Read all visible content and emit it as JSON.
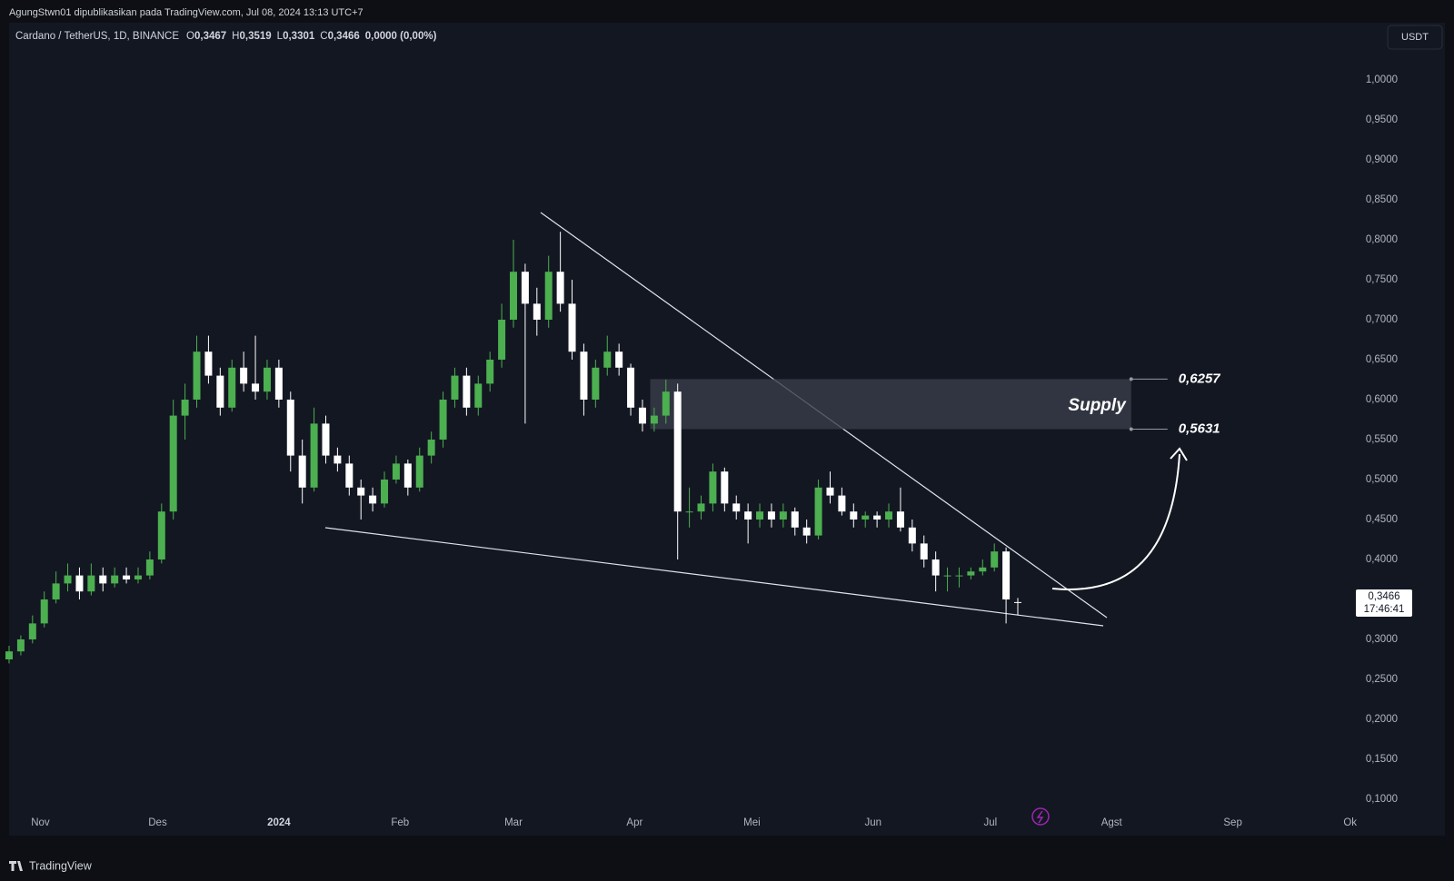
{
  "chart_data": {
    "type": "candlestick",
    "publisher": "AgungStwn01 dipublikasikan pada TradingView.com, Jul 08, 2024 13:13 UTC+7",
    "symbol": "Cardano / TetherUS, 1D, BINANCE",
    "ohlc_legend": [
      {
        "key": "O",
        "value": "0,3467"
      },
      {
        "key": "H",
        "value": "0,3519"
      },
      {
        "key": "L",
        "value": "0,3301"
      },
      {
        "key": "C",
        "value": "0,3466"
      }
    ],
    "change": "0,0000 (0,00%)",
    "currency": "USDT",
    "last_price": {
      "value": 0.3466,
      "label": "0,3466",
      "countdown": "17:46:41"
    },
    "brand": "TradingView",
    "up_color": "#4caf50",
    "down_color": "#ffffff",
    "grid": false,
    "xlim": [
      0,
      344
    ],
    "xticks": [
      {
        "value": 8,
        "label": "Nov"
      },
      {
        "value": 38,
        "label": "Des"
      },
      {
        "value": 69,
        "label": "2024"
      },
      {
        "value": 100,
        "label": "Feb"
      },
      {
        "value": 129,
        "label": "Mar"
      },
      {
        "value": 160,
        "label": "Apr"
      },
      {
        "value": 190,
        "label": "Mei"
      },
      {
        "value": 221,
        "label": "Jun"
      },
      {
        "value": 251,
        "label": "Jul"
      },
      {
        "value": 282,
        "label": "Agst"
      },
      {
        "value": 313,
        "label": "Sep"
      },
      {
        "value": 343,
        "label": "Ok"
      }
    ],
    "ylim": [
      0.0568,
      1.0716
    ],
    "yticks": [
      {
        "value": 0.1,
        "label": "0,1000"
      },
      {
        "value": 0.15,
        "label": "0,1500"
      },
      {
        "value": 0.2,
        "label": "0,2000"
      },
      {
        "value": 0.25,
        "label": "0,2500"
      },
      {
        "value": 0.3,
        "label": "0,3000"
      },
      {
        "value": 0.35,
        "label": "0,3500"
      },
      {
        "value": 0.4,
        "label": "0,4000"
      },
      {
        "value": 0.45,
        "label": "0,4500"
      },
      {
        "value": 0.5,
        "label": "0,5000"
      },
      {
        "value": 0.55,
        "label": "0,5500"
      },
      {
        "value": 0.6,
        "label": "0,6000"
      },
      {
        "value": 0.65,
        "label": "0,6500"
      },
      {
        "value": 0.7,
        "label": "0,7000"
      },
      {
        "value": 0.75,
        "label": "0,7500"
      },
      {
        "value": 0.8,
        "label": "0,8000"
      },
      {
        "value": 0.85,
        "label": "0,8500"
      },
      {
        "value": 0.9,
        "label": "0,9000"
      },
      {
        "value": 0.95,
        "label": "0,9500"
      },
      {
        "value": 1,
        "label": "1,0000"
      }
    ],
    "supply_zone": {
      "label": "Supply",
      "top": {
        "value": 0.6257,
        "label": "0,6257"
      },
      "bottom": {
        "value": 0.5631,
        "label": "0,5631"
      }
    },
    "candles": [
      [
        0,
        0.275,
        0.292,
        0.27,
        0.285
      ],
      [
        3,
        0.285,
        0.305,
        0.28,
        0.3
      ],
      [
        6,
        0.3,
        0.33,
        0.295,
        0.32
      ],
      [
        9,
        0.32,
        0.36,
        0.315,
        0.35
      ],
      [
        12,
        0.35,
        0.385,
        0.345,
        0.37
      ],
      [
        15,
        0.37,
        0.395,
        0.36,
        0.38
      ],
      [
        18,
        0.38,
        0.39,
        0.35,
        0.36
      ],
      [
        21,
        0.36,
        0.395,
        0.355,
        0.38
      ],
      [
        24,
        0.38,
        0.39,
        0.36,
        0.37
      ],
      [
        27,
        0.37,
        0.39,
        0.365,
        0.38
      ],
      [
        30,
        0.38,
        0.39,
        0.37,
        0.375
      ],
      [
        33,
        0.375,
        0.39,
        0.37,
        0.38
      ],
      [
        36,
        0.38,
        0.41,
        0.375,
        0.4
      ],
      [
        39,
        0.4,
        0.47,
        0.395,
        0.46
      ],
      [
        42,
        0.46,
        0.6,
        0.45,
        0.58
      ],
      [
        45,
        0.58,
        0.62,
        0.55,
        0.6
      ],
      [
        48,
        0.6,
        0.68,
        0.59,
        0.66
      ],
      [
        51,
        0.66,
        0.68,
        0.62,
        0.63
      ],
      [
        54,
        0.63,
        0.64,
        0.58,
        0.59
      ],
      [
        57,
        0.59,
        0.65,
        0.585,
        0.64
      ],
      [
        60,
        0.64,
        0.66,
        0.61,
        0.62
      ],
      [
        63,
        0.62,
        0.68,
        0.6,
        0.61
      ],
      [
        66,
        0.61,
        0.65,
        0.6,
        0.64
      ],
      [
        69,
        0.64,
        0.65,
        0.59,
        0.6
      ],
      [
        72,
        0.6,
        0.61,
        0.51,
        0.53
      ],
      [
        75,
        0.53,
        0.55,
        0.47,
        0.49
      ],
      [
        78,
        0.49,
        0.59,
        0.485,
        0.57
      ],
      [
        81,
        0.57,
        0.58,
        0.52,
        0.53
      ],
      [
        84,
        0.53,
        0.54,
        0.51,
        0.52
      ],
      [
        87,
        0.52,
        0.53,
        0.48,
        0.49
      ],
      [
        90,
        0.49,
        0.5,
        0.45,
        0.48
      ],
      [
        93,
        0.48,
        0.49,
        0.46,
        0.47
      ],
      [
        96,
        0.47,
        0.51,
        0.465,
        0.5
      ],
      [
        99,
        0.5,
        0.53,
        0.495,
        0.52
      ],
      [
        102,
        0.52,
        0.525,
        0.48,
        0.49
      ],
      [
        105,
        0.49,
        0.54,
        0.485,
        0.53
      ],
      [
        108,
        0.53,
        0.56,
        0.52,
        0.55
      ],
      [
        111,
        0.55,
        0.61,
        0.54,
        0.6
      ],
      [
        114,
        0.6,
        0.64,
        0.59,
        0.63
      ],
      [
        117,
        0.63,
        0.64,
        0.58,
        0.59
      ],
      [
        120,
        0.59,
        0.63,
        0.58,
        0.62
      ],
      [
        123,
        0.62,
        0.66,
        0.61,
        0.65
      ],
      [
        126,
        0.65,
        0.72,
        0.64,
        0.7
      ],
      [
        129,
        0.7,
        0.8,
        0.69,
        0.76
      ],
      [
        132,
        0.76,
        0.77,
        0.57,
        0.72
      ],
      [
        135,
        0.72,
        0.74,
        0.68,
        0.7
      ],
      [
        138,
        0.7,
        0.78,
        0.69,
        0.76
      ],
      [
        141,
        0.76,
        0.81,
        0.71,
        0.72
      ],
      [
        144,
        0.72,
        0.75,
        0.65,
        0.66
      ],
      [
        147,
        0.66,
        0.67,
        0.58,
        0.6
      ],
      [
        150,
        0.6,
        0.65,
        0.59,
        0.64
      ],
      [
        153,
        0.64,
        0.68,
        0.63,
        0.66
      ],
      [
        156,
        0.66,
        0.67,
        0.63,
        0.64
      ],
      [
        159,
        0.64,
        0.645,
        0.58,
        0.59
      ],
      [
        162,
        0.59,
        0.6,
        0.56,
        0.57
      ],
      [
        165,
        0.57,
        0.59,
        0.56,
        0.58
      ],
      [
        168,
        0.58,
        0.625,
        0.57,
        0.61
      ],
      [
        171,
        0.61,
        0.62,
        0.4,
        0.46
      ],
      [
        174,
        0.46,
        0.49,
        0.44,
        0.46
      ],
      [
        177,
        0.46,
        0.48,
        0.45,
        0.47
      ],
      [
        180,
        0.47,
        0.52,
        0.46,
        0.51
      ],
      [
        183,
        0.51,
        0.515,
        0.46,
        0.47
      ],
      [
        186,
        0.47,
        0.48,
        0.45,
        0.46
      ],
      [
        189,
        0.46,
        0.47,
        0.42,
        0.45
      ],
      [
        192,
        0.45,
        0.47,
        0.44,
        0.46
      ],
      [
        195,
        0.46,
        0.47,
        0.44,
        0.45
      ],
      [
        198,
        0.45,
        0.47,
        0.44,
        0.46
      ],
      [
        201,
        0.46,
        0.465,
        0.43,
        0.44
      ],
      [
        204,
        0.44,
        0.45,
        0.42,
        0.43
      ],
      [
        207,
        0.43,
        0.5,
        0.425,
        0.49
      ],
      [
        210,
        0.49,
        0.51,
        0.47,
        0.48
      ],
      [
        213,
        0.48,
        0.49,
        0.455,
        0.46
      ],
      [
        216,
        0.46,
        0.47,
        0.44,
        0.45
      ],
      [
        219,
        0.45,
        0.46,
        0.44,
        0.455
      ],
      [
        222,
        0.455,
        0.46,
        0.44,
        0.45
      ],
      [
        225,
        0.45,
        0.47,
        0.44,
        0.46
      ],
      [
        228,
        0.46,
        0.49,
        0.435,
        0.44
      ],
      [
        231,
        0.44,
        0.45,
        0.41,
        0.42
      ],
      [
        234,
        0.42,
        0.43,
        0.39,
        0.4
      ],
      [
        237,
        0.4,
        0.41,
        0.36,
        0.38
      ],
      [
        240,
        0.38,
        0.39,
        0.36,
        0.38
      ],
      [
        243,
        0.38,
        0.39,
        0.365,
        0.38
      ],
      [
        246,
        0.38,
        0.39,
        0.375,
        0.385
      ],
      [
        249,
        0.385,
        0.4,
        0.38,
        0.39
      ],
      [
        252,
        0.39,
        0.42,
        0.385,
        0.41
      ],
      [
        255,
        0.41,
        0.415,
        0.32,
        0.35
      ],
      [
        258,
        0.3467,
        0.3519,
        0.3301,
        0.3466
      ]
    ]
  }
}
